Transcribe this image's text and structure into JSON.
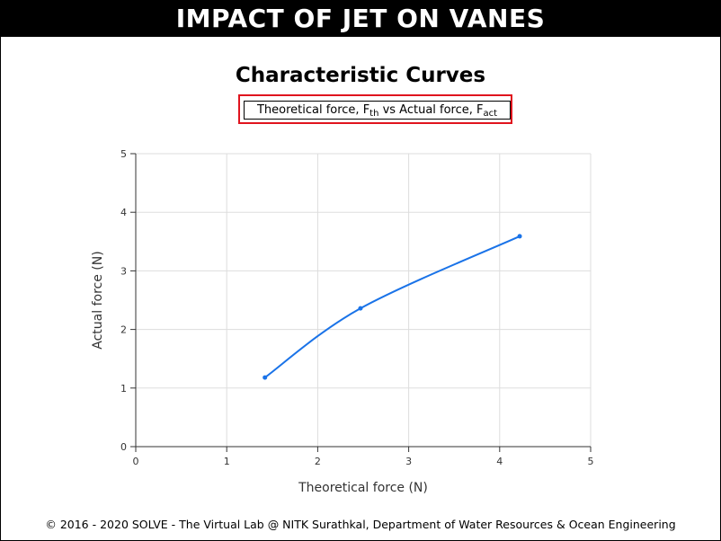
{
  "header": {
    "title": "IMPACT OF JET ON VANES"
  },
  "chart_data": {
    "type": "line",
    "title": "Characteristic Curves",
    "subtitle": {
      "prefix": "Theoretical force, F",
      "prefix_sub": "th",
      "middle": " vs Actual force, F",
      "suffix_sub": "act"
    },
    "xlabel": "Theoretical force (N)",
    "ylabel": "Actual force (N)",
    "xlim": [
      0,
      5
    ],
    "ylim": [
      0,
      5
    ],
    "xticks": [
      "0",
      "1",
      "2",
      "3",
      "4",
      "5"
    ],
    "yticks": [
      "0",
      "1",
      "2",
      "3",
      "4",
      "5"
    ],
    "grid": true,
    "series": [
      {
        "name": "Actual force",
        "color": "#1a73e8",
        "smooth": true,
        "x": [
          1.42,
          2.47,
          4.22
        ],
        "y": [
          1.18,
          2.36,
          3.59
        ]
      }
    ]
  },
  "footer": {
    "text": "© 2016 - 2020 SOLVE - The Virtual Lab @ NITK Surathkal, Department of Water Resources & Ocean Engineering"
  }
}
